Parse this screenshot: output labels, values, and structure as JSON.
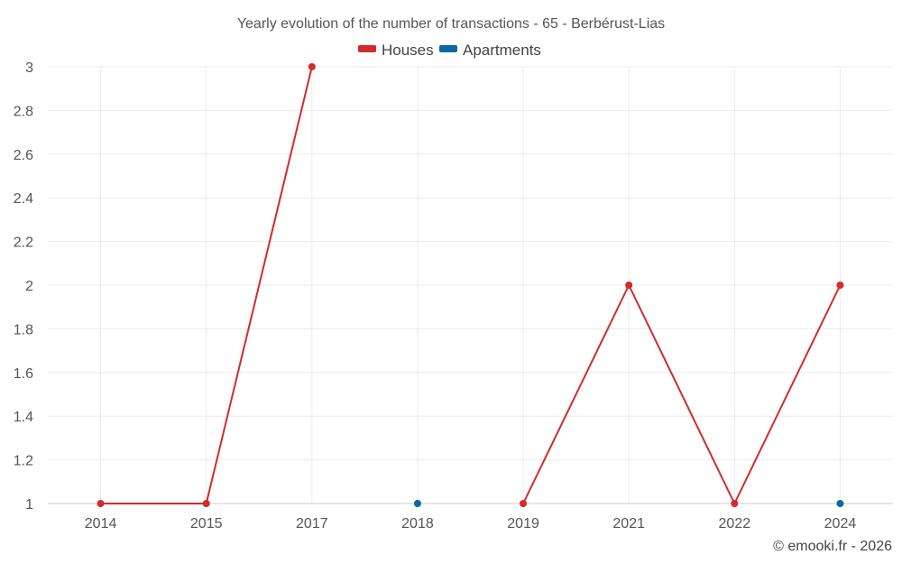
{
  "chart_data": {
    "type": "line",
    "title": "Yearly evolution of the number of transactions - 65 - Berbérust-Lias",
    "categories": [
      "2014",
      "2015",
      "2017",
      "2018",
      "2019",
      "2021",
      "2022",
      "2024"
    ],
    "series": [
      {
        "name": "Houses",
        "color": "#d32a2a",
        "values": [
          1,
          1,
          3,
          null,
          1,
          2,
          1,
          2
        ]
      },
      {
        "name": "Apartments",
        "color": "#0b6aa2",
        "values": [
          null,
          null,
          null,
          1,
          null,
          null,
          null,
          1
        ]
      }
    ],
    "ylim": [
      1,
      3
    ],
    "yticks": [
      "1",
      "1.2",
      "1.4",
      "1.6",
      "1.8",
      "2",
      "2.2",
      "2.4",
      "2.6",
      "2.8",
      "3"
    ],
    "legend_position": "top-center",
    "grid": true
  },
  "credit": "© emooki.fr - 2026"
}
